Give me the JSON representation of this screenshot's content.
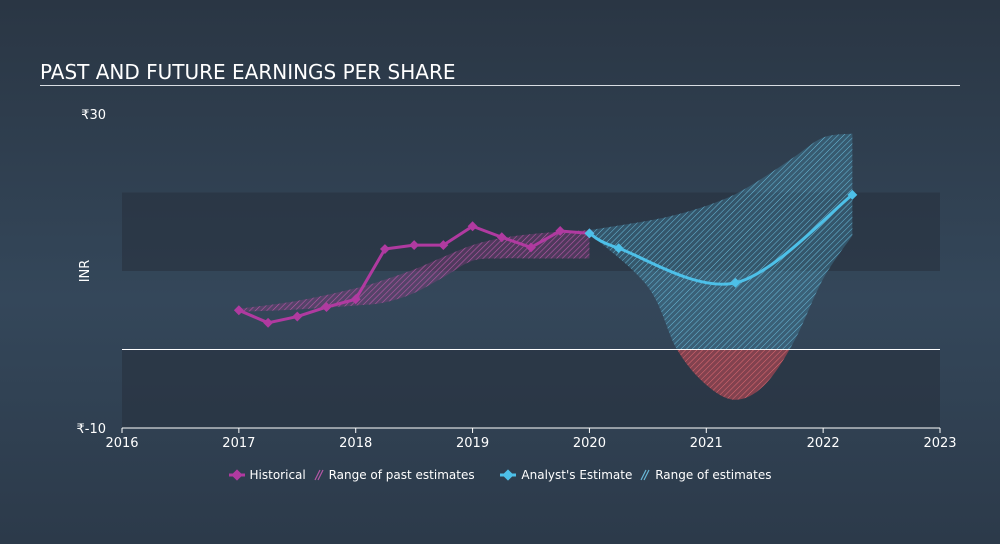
{
  "title": "PAST AND FUTURE EARNINGS PER SHARE",
  "colors": {
    "historical": "#b03aa0",
    "historical_range": "#8e3d83",
    "estimate": "#4dc0e8",
    "estimate_range": "#4a9dbd",
    "negative_range": "#c94a55"
  },
  "legend": {
    "historical": "Historical",
    "past_range": "Range of past estimates",
    "estimate": "Analyst's Estimate",
    "future_range": "Range of estimates"
  },
  "chart_data": {
    "type": "line",
    "ylabel": "INR",
    "ylim": [
      -10,
      30
    ],
    "xlim": [
      2016,
      2023
    ],
    "y_tick_labels": [
      "₹30",
      "₹-10"
    ],
    "y_ticks": [
      30,
      -10
    ],
    "x_tick_labels": [
      "2016",
      "2017",
      "2018",
      "2019",
      "2020",
      "2021",
      "2022",
      "2023"
    ],
    "x_ticks": [
      2016,
      2017,
      2018,
      2019,
      2020,
      2021,
      2022,
      2023
    ],
    "shaded_band": [
      10,
      20
    ],
    "zero_line": 0,
    "series": [
      {
        "name": "Historical",
        "x": [
          2017.0,
          2017.25,
          2017.5,
          2017.75,
          2018.0,
          2018.25,
          2018.5,
          2018.75,
          2019.0,
          2019.25,
          2019.5,
          2019.75,
          2020.0
        ],
        "y": [
          5.0,
          3.4,
          4.2,
          5.4,
          6.4,
          12.8,
          13.3,
          13.3,
          15.7,
          14.3,
          13.0,
          15.1,
          14.8
        ]
      },
      {
        "name": "Analyst's Estimate",
        "x": [
          2020.0,
          2020.25,
          2021.25,
          2022.25
        ],
        "y": [
          14.8,
          12.9,
          8.5,
          19.7
        ]
      }
    ],
    "past_range": {
      "x": [
        2017.0,
        2017.5,
        2018.0,
        2018.25,
        2018.5,
        2018.75,
        2019.0,
        2019.25,
        2019.5,
        2019.75,
        2020.0
      ],
      "upper": [
        5.2,
        6.2,
        7.8,
        8.9,
        10.2,
        11.8,
        13.3,
        14.2,
        14.7,
        15.0,
        15.2
      ],
      "lower": [
        4.8,
        5.1,
        5.6,
        6.0,
        7.2,
        9.2,
        11.3,
        11.6,
        11.6,
        11.6,
        11.6
      ]
    },
    "future_range": {
      "x": [
        2020.0,
        2020.5,
        2020.75,
        2021.0,
        2021.25,
        2021.5,
        2021.75,
        2022.0,
        2022.25
      ],
      "upper": [
        15.2,
        16.4,
        17.2,
        18.3,
        19.8,
        22.0,
        24.5,
        27.0,
        27.5
      ],
      "lower": [
        14.8,
        8.0,
        0.0,
        -4.5,
        -6.4,
        -4.5,
        1.0,
        9.0,
        14.5
      ]
    }
  }
}
